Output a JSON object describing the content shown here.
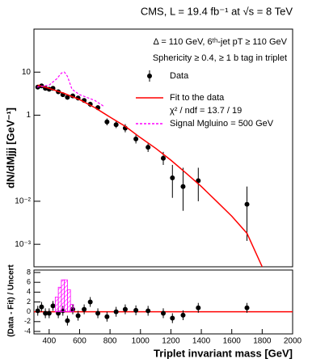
{
  "chart_data": [
    {
      "type": "scatter",
      "title": "CMS, L = 19.4 fb⁻¹ at √s  =  8 TeV",
      "annotations": [
        "Δ = 110 GeV, 6ᵗʰ-jet pT ≥ 110 GeV",
        "Sphericity ≥ 0.4, ≥ 1 b tag in triplet",
        "χ² / ndf = 13.7 / 19"
      ],
      "y_label": "dN/dMjjj [GeV⁻¹]",
      "log_y": true,
      "xlim": [
        300,
        2000
      ],
      "ylim": [
        0.0003,
        100
      ],
      "yticks": [
        {
          "value": 0.001,
          "label": "10⁻³"
        },
        {
          "value": 0.01,
          "label": "10⁻²"
        },
        1,
        10
      ],
      "series": [
        {
          "name": "Data",
          "color": "#000000",
          "kind": "points",
          "x": [
            325,
            350,
            375,
            400,
            425,
            460,
            490,
            520,
            555,
            590,
            630,
            670,
            720,
            780,
            840,
            900,
            970,
            1050,
            1150,
            1210,
            1280,
            1380,
            1700
          ],
          "values": [
            4.5,
            4.8,
            4.2,
            4.0,
            4.2,
            3.5,
            3.0,
            2.6,
            2.8,
            2.5,
            2.2,
            1.8,
            1.5,
            0.7,
            0.6,
            0.5,
            0.28,
            0.18,
            0.1,
            0.035,
            0.022,
            0.03,
            0.0085
          ],
          "err_low": [
            0.5,
            0.5,
            0.45,
            0.4,
            0.45,
            0.4,
            0.35,
            0.3,
            0.3,
            0.3,
            0.25,
            0.25,
            0.2,
            0.12,
            0.1,
            0.1,
            0.06,
            0.04,
            0.03,
            0.023,
            0.016,
            0.02,
            0.0073
          ],
          "err_high": [
            0.5,
            0.5,
            0.45,
            0.4,
            0.45,
            0.4,
            0.35,
            0.3,
            0.3,
            0.3,
            0.25,
            0.25,
            0.2,
            0.14,
            0.12,
            0.12,
            0.07,
            0.05,
            0.04,
            0.035,
            0.038,
            0.03,
            0.0135
          ]
        },
        {
          "name": "Fit to the data",
          "color": "#ff0000",
          "kind": "line",
          "x": [
            325,
            400,
            500,
            600,
            700,
            800,
            900,
            1000,
            1100,
            1200,
            1300,
            1400,
            1500,
            1600,
            1700,
            1800
          ],
          "values": [
            5.0,
            4.2,
            3.2,
            2.3,
            1.5,
            0.9,
            0.55,
            0.3,
            0.17,
            0.09,
            0.045,
            0.022,
            0.01,
            0.0045,
            0.0018,
            0.0003
          ]
        },
        {
          "name": "Signal Mgluino = 500 GeV",
          "color": "#ff00ff",
          "kind": "dashed",
          "x": [
            320,
            400,
            450,
            480,
            500,
            520,
            550,
            600,
            700,
            760
          ],
          "values": [
            4.5,
            5.0,
            7.0,
            9.5,
            10,
            8.0,
            4.0,
            3.0,
            2.2,
            1.6
          ]
        }
      ]
    },
    {
      "type": "scatter",
      "x_label": "Triplet invariant mass [GeV]",
      "y_label": "(Data - Fit) / Uncert",
      "xlim": [
        300,
        2000
      ],
      "ylim": [
        -4.5,
        8.5
      ],
      "xticks": [
        400,
        600,
        800,
        1000,
        1200,
        1400,
        1600,
        1800,
        2000
      ],
      "yticks": [
        -4,
        -2,
        0,
        2,
        4,
        6,
        8
      ],
      "series": [
        {
          "name": "Data",
          "color": "#000000",
          "kind": "points",
          "x": [
            325,
            350,
            375,
            400,
            425,
            460,
            490,
            520,
            555,
            590,
            630,
            670,
            720,
            780,
            840,
            900,
            970,
            1050,
            1150,
            1210,
            1280,
            1380,
            1700
          ],
          "values": [
            0.2,
            1,
            -0.3,
            -0.3,
            1.2,
            -0.3,
            0.2,
            -1.8,
            0.5,
            -0.8,
            0.5,
            2,
            -0.3,
            -1,
            0,
            0.5,
            0.3,
            0.2,
            -0.3,
            -1.3,
            -0.7,
            0.8,
            0.8
          ],
          "errors": [
            1,
            1,
            1,
            1,
            1,
            1,
            1,
            1,
            1,
            1,
            1,
            1,
            1,
            1,
            1,
            1,
            1,
            1,
            1,
            1,
            1,
            1,
            1
          ]
        },
        {
          "name": "Signal",
          "color": "#ff00ff",
          "kind": "hist",
          "bins": [
            440,
            460,
            480,
            500,
            520,
            540,
            560
          ],
          "values": [
            3,
            5,
            6.5,
            6.5,
            4.5,
            1.5
          ]
        }
      ]
    }
  ]
}
